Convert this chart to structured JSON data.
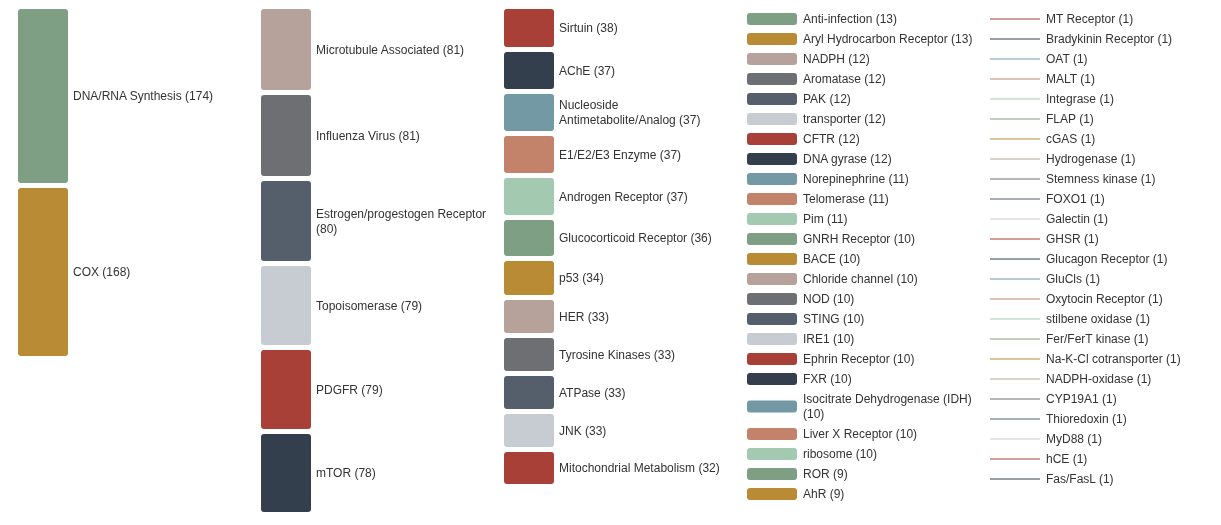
{
  "chart_data": {
    "type": "other",
    "value_labels": [
      "(174)",
      "(168)",
      "(81)",
      "(81)",
      "(80)",
      "(79)",
      "(79)",
      "(78)",
      "(38)",
      "(37)",
      "(37)",
      "(37)",
      "(37)",
      "(36)",
      "(34)",
      "(33)",
      "(33)",
      "(33)",
      "(33)",
      "(32)",
      "(13)",
      "(13)",
      "(12)",
      "(12)",
      "(12)",
      "(12)",
      "(12)",
      "(12)",
      "(11)",
      "(11)",
      "(11)",
      "(10)",
      "(10)",
      "(10)",
      "(10)",
      "(10)",
      "(10)",
      "(10)",
      "(10)",
      "(10)",
      "(10)",
      "(10)",
      "(9)",
      "(9)",
      "(1)",
      "(1)",
      "(1)",
      "(1)",
      "(1)",
      "(1)",
      "(1)",
      "(1)",
      "(1)",
      "(1)",
      "(1)",
      "(1)",
      "(1)",
      "(1)",
      "(1)",
      "(1)",
      "(1)",
      "(1)",
      "(1)",
      "(1)",
      "(1)",
      "(1)",
      "(1)",
      "(1)"
    ],
    "categories": [
      "DNA/RNA Synthesis",
      "COX",
      "Microtubule Associated",
      "Influenza Virus",
      "Estrogen/progestogen Receptor",
      "Topoisomerase",
      "PDGFR",
      "mTOR",
      "Sirtuin",
      "AChE",
      "Nucleoside Antimetabolite/Analog",
      "E1/E2/E3 Enzyme",
      "Androgen Receptor",
      "Glucocorticoid Receptor",
      "p53",
      "HER",
      "Tyrosine Kinases",
      "ATPase",
      "JNK",
      "Mitochondrial Metabolism",
      "Anti-infection",
      "Aryl Hydrocarbon Receptor",
      "NADPH",
      "Aromatase",
      "PAK",
      "transporter",
      "CFTR",
      "DNA gyrase",
      "Norepinephrine",
      "Telomerase",
      "Pim",
      "GNRH Receptor",
      "BACE",
      "Chloride channel",
      "NOD",
      "STING",
      "IRE1",
      "Ephrin Receptor",
      "FXR",
      "Isocitrate Dehydrogenase (IDH)",
      "Liver X Receptor",
      "ribosome",
      "ROR",
      "AhR",
      "MT Receptor",
      "Bradykinin Receptor",
      "OAT",
      "MALT",
      "Integrase",
      "FLAP",
      "cGAS",
      "Hydrogenase",
      "Stemness kinase",
      "FOXO1",
      "Galectin",
      "GHSR",
      "Glucagon Receptor",
      "GluCls",
      "Oxytocin Receptor",
      "stilbene oxidase",
      "Fer/FerT kinase",
      "Na-K-Cl cotransporter",
      "NADPH-oxidase",
      "CYP19A1",
      "Thioredoxin",
      "MyD88",
      "hCE",
      "Fas/FasL"
    ],
    "values": [
      174,
      168,
      81,
      81,
      80,
      79,
      79,
      78,
      38,
      37,
      37,
      37,
      37,
      36,
      34,
      33,
      33,
      33,
      33,
      32,
      13,
      13,
      12,
      12,
      12,
      12,
      12,
      12,
      11,
      11,
      11,
      10,
      10,
      10,
      10,
      10,
      10,
      10,
      10,
      10,
      10,
      10,
      9,
      9,
      1,
      1,
      1,
      1,
      1,
      1,
      1,
      1,
      1,
      1,
      1,
      1,
      1,
      1,
      1,
      1,
      1,
      1,
      1,
      1,
      1,
      1,
      1,
      1
    ],
    "colors": [
      "#7f9f84",
      "#b98b34",
      "#b6a29a",
      "#6e6f73",
      "#555f6b",
      "#c7ccd3",
      "#a84037",
      "#343f4d",
      "#a84037",
      "#343f4d",
      "#7399a4",
      "#c3836a",
      "#a3c9b1",
      "#7f9f84",
      "#b98b34",
      "#b6a29a",
      "#6e6f73",
      "#555f6b",
      "#c7ccd3",
      "#a84037",
      "#7f9f84",
      "#b98b34",
      "#b6a29a",
      "#6e6f73",
      "#555f6b",
      "#c7ccd3",
      "#a84037",
      "#343f4d",
      "#7399a4",
      "#c3836a",
      "#a3c9b1",
      "#7f9f84",
      "#b98b34",
      "#b6a29a",
      "#6e6f73",
      "#555f6b",
      "#c7ccd3",
      "#a84037",
      "#343f4d",
      "#7399a4",
      "#c3836a",
      "#a3c9b1",
      "#7f9f84",
      "#b98b34",
      "#a84037",
      "#343f4d",
      "#7399a4",
      "#c3836a",
      "#a3c9b1",
      "#7f9f84",
      "#b98b34",
      "#b6a29a",
      "#6e6f73",
      "#555f6b",
      "#c7ccd3",
      "#a84037",
      "#343f4d",
      "#7399a4",
      "#c3836a",
      "#a3c9b1",
      "#7f9f84",
      "#b98b34",
      "#b6a29a",
      "#6e6f73",
      "#555f6b",
      "#c7ccd3",
      "#a84037",
      "#343f4d"
    ]
  }
}
